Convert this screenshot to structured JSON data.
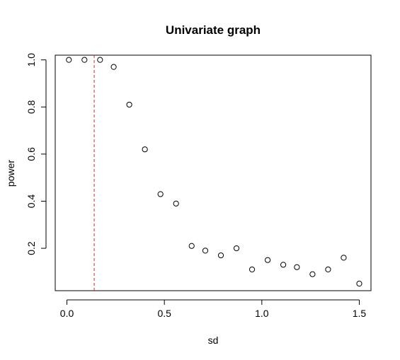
{
  "chart_data": {
    "type": "scatter",
    "title": "Univariate graph",
    "xlabel": "sd",
    "ylabel": "power",
    "xlim": [
      -0.06,
      1.56
    ],
    "ylim": [
      0.02,
      1.02
    ],
    "x_ticks": [
      0.0,
      0.5,
      1.0,
      1.5
    ],
    "x_tick_labels": [
      "0.0",
      "0.5",
      "1.0",
      "1.5"
    ],
    "y_ticks": [
      0.2,
      0.4,
      0.6,
      0.8,
      1.0
    ],
    "y_tick_labels": [
      "0.2",
      "0.4",
      "0.6",
      "0.8",
      "1.0"
    ],
    "grid": false,
    "marker": "open-circle",
    "reference_line": {
      "x": 0.14,
      "color": "#d62728",
      "style": "dashed"
    },
    "points": [
      {
        "x": 0.01,
        "y": 1.0
      },
      {
        "x": 0.09,
        "y": 1.0
      },
      {
        "x": 0.17,
        "y": 1.0
      },
      {
        "x": 0.24,
        "y": 0.97
      },
      {
        "x": 0.32,
        "y": 0.81
      },
      {
        "x": 0.4,
        "y": 0.62
      },
      {
        "x": 0.48,
        "y": 0.43
      },
      {
        "x": 0.56,
        "y": 0.39
      },
      {
        "x": 0.64,
        "y": 0.21
      },
      {
        "x": 0.71,
        "y": 0.19
      },
      {
        "x": 0.79,
        "y": 0.17
      },
      {
        "x": 0.87,
        "y": 0.2
      },
      {
        "x": 0.95,
        "y": 0.11
      },
      {
        "x": 1.03,
        "y": 0.15
      },
      {
        "x": 1.11,
        "y": 0.13
      },
      {
        "x": 1.18,
        "y": 0.12
      },
      {
        "x": 1.26,
        "y": 0.09
      },
      {
        "x": 1.34,
        "y": 0.11
      },
      {
        "x": 1.42,
        "y": 0.16
      },
      {
        "x": 1.5,
        "y": 0.05
      }
    ]
  }
}
